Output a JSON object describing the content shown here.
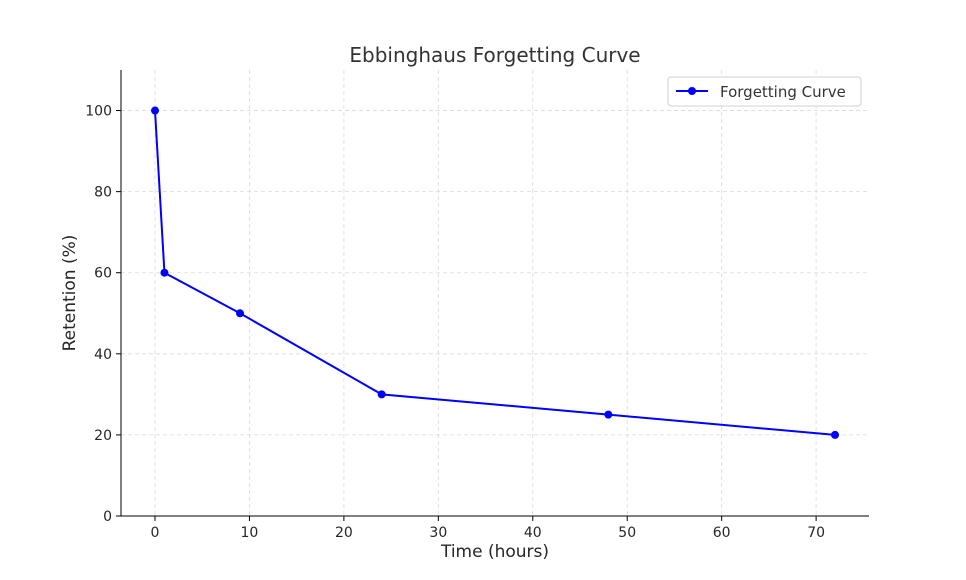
{
  "chart_data": {
    "type": "line",
    "title": "Ebbinghaus Forgetting Curve",
    "xlabel": "Time (hours)",
    "ylabel": "Retention (%)",
    "xlim": [
      -3.6,
      75.6
    ],
    "ylim": [
      0,
      110
    ],
    "xticks": [
      0,
      10,
      20,
      30,
      40,
      50,
      60,
      70
    ],
    "yticks": [
      0,
      20,
      40,
      60,
      80,
      100
    ],
    "grid": true,
    "legend_position": "top-right",
    "series": [
      {
        "name": "Forgetting Curve",
        "color": "#0000ff",
        "marker": "circle",
        "x": [
          0,
          1,
          9,
          24,
          48,
          72
        ],
        "y": [
          100,
          60,
          50,
          30,
          25,
          20
        ]
      }
    ]
  }
}
